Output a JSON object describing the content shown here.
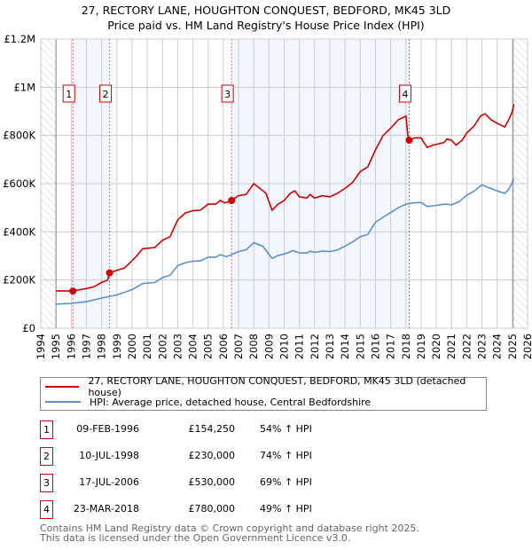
{
  "title_line1": "27, RECTORY LANE, HOUGHTON CONQUEST, BEDFORD, MK45 3LD",
  "title_line2": "Price paid vs. HM Land Registry's House Price Index (HPI)",
  "legend": [
    {
      "label": "27, RECTORY LANE, HOUGHTON CONQUEST, BEDFORD, MK45 3LD (detached house)",
      "color": "#cc0000"
    },
    {
      "label": "HPI: Average price, detached house, Central Bedfordshire",
      "color": "#5b8fd0"
    }
  ],
  "sales": [
    {
      "num": "1",
      "date": "09-FEB-1996",
      "price": "£154,250",
      "hpi": "54% ↑ HPI",
      "x": 1996.11,
      "y": 154250
    },
    {
      "num": "2",
      "date": "10-JUL-1998",
      "price": "£230,000",
      "hpi": "74% ↑ HPI",
      "x": 1998.52,
      "y": 230000
    },
    {
      "num": "3",
      "date": "17-JUL-2006",
      "price": "£530,000",
      "hpi": "69% ↑ HPI",
      "x": 2006.54,
      "y": 530000
    },
    {
      "num": "4",
      "date": "23-MAR-2018",
      "price": "£780,000",
      "hpi": "49% ↑ HPI",
      "x": 2018.22,
      "y": 780000
    }
  ],
  "footer": [
    "Contains HM Land Registry data © Crown copyright and database right 2025.",
    "This data is licensed under the Open Government Licence v3.0."
  ],
  "chart_data": {
    "type": "line",
    "xlim": [
      1994,
      2026
    ],
    "ylim": [
      0,
      1200000
    ],
    "data_start": 1995,
    "data_end": 2025.1,
    "yticks": [
      {
        "v": 0,
        "label": "£0"
      },
      {
        "v": 200000,
        "label": "£200K"
      },
      {
        "v": 400000,
        "label": "£400K"
      },
      {
        "v": 600000,
        "label": "£600K"
      },
      {
        "v": 800000,
        "label": "£800K"
      },
      {
        "v": 1000000,
        "label": "£1M"
      },
      {
        "v": 1200000,
        "label": "£1.2M"
      }
    ],
    "xticks": [
      "1994",
      "1995",
      "1996",
      "1997",
      "1998",
      "1999",
      "2000",
      "2001",
      "2002",
      "2003",
      "2004",
      "2005",
      "2006",
      "2007",
      "2008",
      "2009",
      "2010",
      "2011",
      "2012",
      "2013",
      "2014",
      "2015",
      "2016",
      "2017",
      "2018",
      "2019",
      "2020",
      "2021",
      "2022",
      "2023",
      "2024",
      "2025",
      "2026"
    ],
    "series": [
      {
        "name": "price",
        "color": "#cc0000",
        "points": [
          [
            1995,
            155000
          ],
          [
            1996.11,
            154250
          ],
          [
            1997,
            165000
          ],
          [
            1997.5,
            172000
          ],
          [
            1998,
            190000
          ],
          [
            1998.4,
            200000
          ],
          [
            1998.52,
            230000
          ],
          [
            1999,
            240000
          ],
          [
            1999.5,
            250000
          ],
          [
            2000,
            280000
          ],
          [
            2000.3,
            300000
          ],
          [
            2000.7,
            330000
          ],
          [
            2001.5,
            335000
          ],
          [
            2002,
            365000
          ],
          [
            2002.5,
            380000
          ],
          [
            2003,
            450000
          ],
          [
            2003.5,
            478000
          ],
          [
            2004,
            488000
          ],
          [
            2004.5,
            490000
          ],
          [
            2005,
            515000
          ],
          [
            2005.5,
            515000
          ],
          [
            2005.8,
            530000
          ],
          [
            2006.1,
            520000
          ],
          [
            2006.54,
            530000
          ],
          [
            2007,
            550000
          ],
          [
            2007.5,
            555000
          ],
          [
            2008,
            600000
          ],
          [
            2008.4,
            580000
          ],
          [
            2008.8,
            560000
          ],
          [
            2009.2,
            490000
          ],
          [
            2009.6,
            515000
          ],
          [
            2010,
            530000
          ],
          [
            2010.4,
            560000
          ],
          [
            2010.7,
            570000
          ],
          [
            2011,
            545000
          ],
          [
            2011.5,
            540000
          ],
          [
            2011.7,
            555000
          ],
          [
            2012,
            540000
          ],
          [
            2012.5,
            550000
          ],
          [
            2013,
            545000
          ],
          [
            2013.5,
            560000
          ],
          [
            2014,
            580000
          ],
          [
            2014.5,
            605000
          ],
          [
            2015,
            650000
          ],
          [
            2015.5,
            670000
          ],
          [
            2016,
            740000
          ],
          [
            2016.5,
            800000
          ],
          [
            2017,
            830000
          ],
          [
            2017.5,
            865000
          ],
          [
            2018.0,
            880000
          ],
          [
            2018.15,
            790000
          ],
          [
            2018.22,
            780000
          ],
          [
            2018.6,
            790000
          ],
          [
            2019,
            790000
          ],
          [
            2019.4,
            750000
          ],
          [
            2019.8,
            760000
          ],
          [
            2020.5,
            770000
          ],
          [
            2020.7,
            785000
          ],
          [
            2021,
            780000
          ],
          [
            2021.3,
            760000
          ],
          [
            2021.7,
            780000
          ],
          [
            2022,
            810000
          ],
          [
            2022.5,
            840000
          ],
          [
            2022.9,
            880000
          ],
          [
            2023.2,
            890000
          ],
          [
            2023.6,
            865000
          ],
          [
            2024,
            850000
          ],
          [
            2024.5,
            835000
          ],
          [
            2024.8,
            870000
          ],
          [
            2025.0,
            900000
          ],
          [
            2025.1,
            930000
          ]
        ]
      },
      {
        "name": "hpi",
        "color": "#5b8fd0",
        "points": [
          [
            1995,
            100000
          ],
          [
            1996,
            103000
          ],
          [
            1997,
            110000
          ],
          [
            1998,
            125000
          ],
          [
            1999,
            138000
          ],
          [
            2000,
            160000
          ],
          [
            2000.7,
            185000
          ],
          [
            2001.5,
            190000
          ],
          [
            2002,
            210000
          ],
          [
            2002.5,
            220000
          ],
          [
            2003,
            260000
          ],
          [
            2003.5,
            272000
          ],
          [
            2004,
            278000
          ],
          [
            2004.5,
            280000
          ],
          [
            2005,
            295000
          ],
          [
            2005.5,
            295000
          ],
          [
            2005.8,
            305000
          ],
          [
            2006.2,
            297000
          ],
          [
            2006.54,
            305000
          ],
          [
            2007,
            318000
          ],
          [
            2007.5,
            325000
          ],
          [
            2008,
            355000
          ],
          [
            2008.6,
            340000
          ],
          [
            2009.2,
            290000
          ],
          [
            2009.6,
            302000
          ],
          [
            2010,
            308000
          ],
          [
            2010.6,
            322000
          ],
          [
            2011,
            312000
          ],
          [
            2011.5,
            312000
          ],
          [
            2011.7,
            320000
          ],
          [
            2012,
            315000
          ],
          [
            2012.5,
            320000
          ],
          [
            2013,
            318000
          ],
          [
            2013.5,
            325000
          ],
          [
            2014,
            340000
          ],
          [
            2014.5,
            358000
          ],
          [
            2015,
            380000
          ],
          [
            2015.5,
            390000
          ],
          [
            2016,
            440000
          ],
          [
            2016.5,
            460000
          ],
          [
            2017,
            480000
          ],
          [
            2017.5,
            500000
          ],
          [
            2018,
            515000
          ],
          [
            2018.5,
            520000
          ],
          [
            2019,
            522000
          ],
          [
            2019.4,
            505000
          ],
          [
            2020,
            510000
          ],
          [
            2020.6,
            515000
          ],
          [
            2021,
            512000
          ],
          [
            2021.5,
            525000
          ],
          [
            2022,
            552000
          ],
          [
            2022.5,
            570000
          ],
          [
            2023,
            595000
          ],
          [
            2023.5,
            582000
          ],
          [
            2024,
            570000
          ],
          [
            2024.5,
            560000
          ],
          [
            2024.8,
            580000
          ],
          [
            2025.1,
            620000
          ]
        ]
      }
    ]
  }
}
